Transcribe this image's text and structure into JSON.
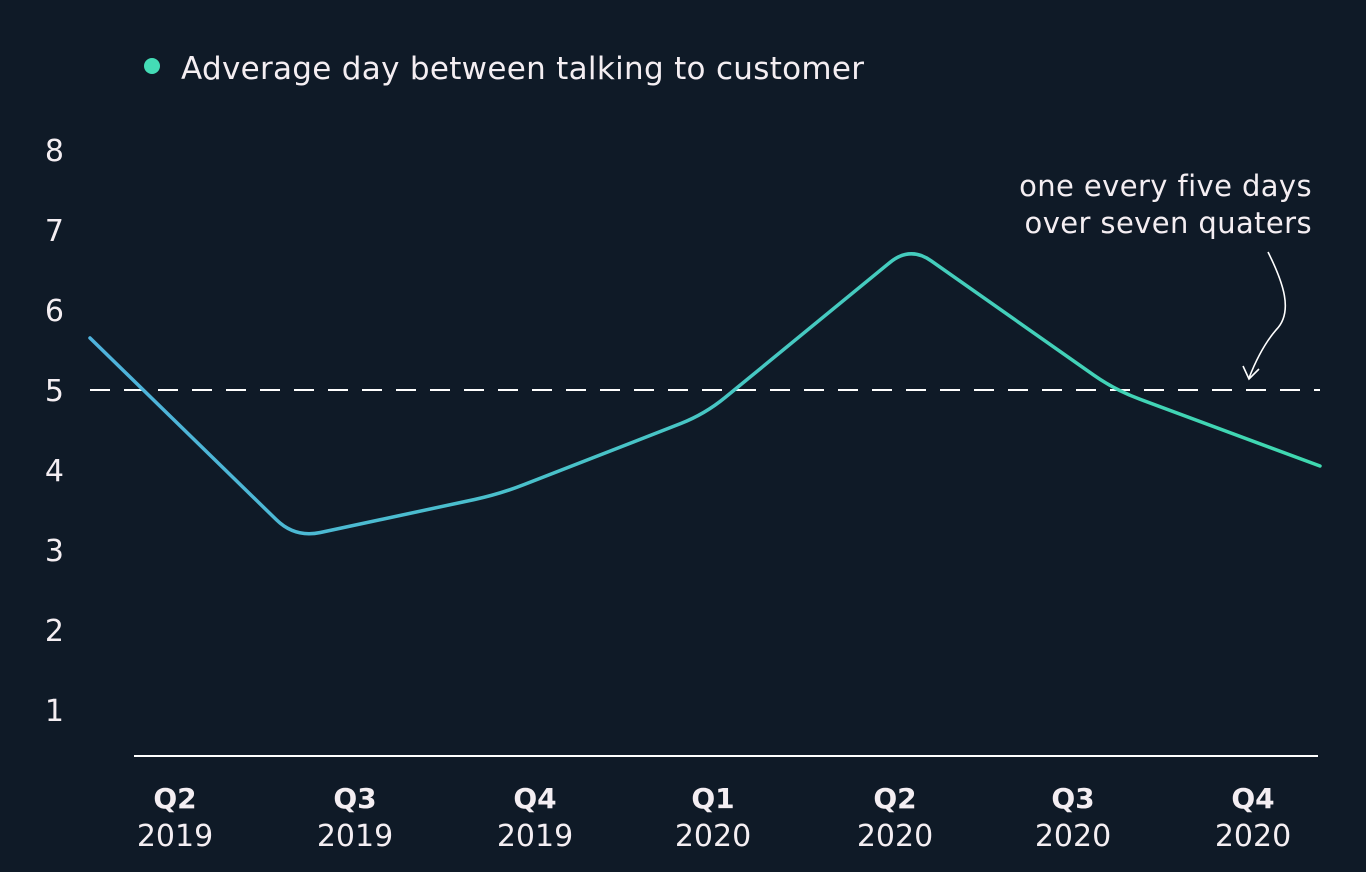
{
  "chart_data": {
    "type": "line",
    "series": [
      {
        "name": "Adverage day between talking to customer",
        "values": [
          5.65,
          3.15,
          3.7,
          4.7,
          6.8,
          5.0,
          4.05
        ]
      }
    ],
    "categories": [
      {
        "quarter": "Q2",
        "year": "2019"
      },
      {
        "quarter": "Q3",
        "year": "2019"
      },
      {
        "quarter": "Q4",
        "year": "2019"
      },
      {
        "quarter": "Q1",
        "year": "2020"
      },
      {
        "quarter": "Q2",
        "year": "2020"
      },
      {
        "quarter": "Q3",
        "year": "2020"
      },
      {
        "quarter": "Q4",
        "year": "2020"
      }
    ],
    "y_ticks": [
      "1",
      "2",
      "3",
      "4",
      "5",
      "6",
      "7",
      "8"
    ],
    "ylim": [
      0.4,
      8.4
    ],
    "reference_line": {
      "value": 5,
      "style": "dashed",
      "annotation": [
        "one every five days",
        "over seven quaters"
      ]
    },
    "grid": false,
    "legend_position": "top-left",
    "colors": {
      "background": "#0f1a27",
      "line_start": "#4fb2dc",
      "line_end": "#3fd9b0",
      "legend_dot": "#44dcb6",
      "text": "#f4eef2",
      "axis": "#ffffff"
    }
  }
}
